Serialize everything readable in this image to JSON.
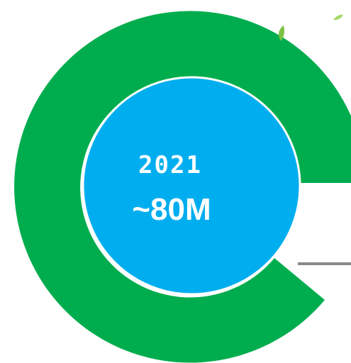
{
  "badge": {
    "year": "2021",
    "value": "~80M"
  }
}
